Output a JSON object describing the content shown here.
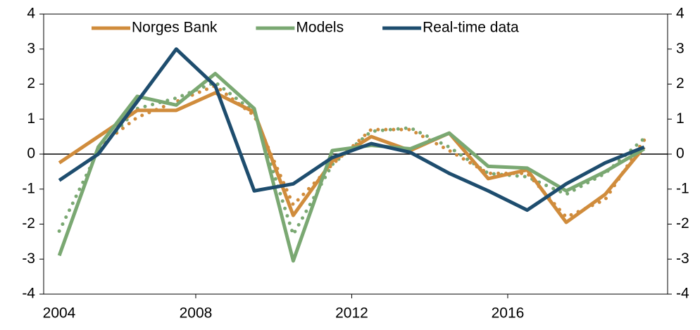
{
  "chart_data": {
    "type": "line",
    "x": [
      2004.5,
      2005.5,
      2006.5,
      2007.5,
      2008.5,
      2009.5,
      2010.5,
      2011.5,
      2012.5,
      2013.5,
      2014.5,
      2015.5,
      2016.5,
      2017.5,
      2018.5,
      2019.5
    ],
    "series": [
      {
        "name": "Norges Bank",
        "color": "#d08c3c",
        "style": "solid",
        "values": [
          -0.25,
          0.5,
          1.25,
          1.25,
          1.75,
          1.2,
          -1.75,
          -0.2,
          0.5,
          0.1,
          0.6,
          -0.7,
          -0.45,
          -1.95,
          -1.15,
          0.2
        ]
      },
      {
        "name": "Models",
        "color": "#7aa872",
        "style": "solid",
        "values": [
          -2.9,
          0.2,
          1.65,
          1.4,
          2.3,
          1.3,
          -3.05,
          0.1,
          0.25,
          0.15,
          0.6,
          -0.35,
          -0.4,
          -1.05,
          -0.5,
          0.15
        ]
      },
      {
        "name": "Real-time data",
        "color": "#1e4d6e",
        "style": "solid",
        "values": [
          -0.75,
          0.0,
          1.5,
          3.0,
          1.95,
          -1.05,
          -0.85,
          -0.1,
          0.3,
          0.05,
          -0.55,
          -1.05,
          -1.6,
          -0.85,
          -0.25,
          0.2
        ]
      },
      {
        "color": "#d08c3c",
        "style": "dotted",
        "values": [
          null,
          0.2,
          1.05,
          1.5,
          1.95,
          1.1,
          -1.45,
          -0.3,
          0.7,
          0.7,
          0.1,
          -0.55,
          -0.55,
          -1.8,
          -1.3,
          0.4
        ]
      },
      {
        "color": "#7aa872",
        "style": "dotted",
        "values": [
          -2.2,
          0.1,
          1.3,
          1.6,
          2.05,
          1.2,
          -2.3,
          -0.3,
          0.65,
          0.75,
          0.2,
          -0.55,
          -0.65,
          -1.15,
          -0.55,
          0.45
        ]
      }
    ],
    "xlim": [
      2004.1,
      2020.1
    ],
    "xticks": [
      2004,
      2008,
      2012,
      2016
    ],
    "ylim": [
      -4,
      4
    ],
    "yticks": [
      -4,
      -3,
      -2,
      -1,
      0,
      1,
      2,
      3,
      4
    ],
    "y2lim": [
      -4,
      4
    ],
    "y2ticks": [
      -4,
      -3,
      -2,
      -1,
      0,
      1,
      2,
      3,
      4
    ],
    "legend": "top"
  }
}
